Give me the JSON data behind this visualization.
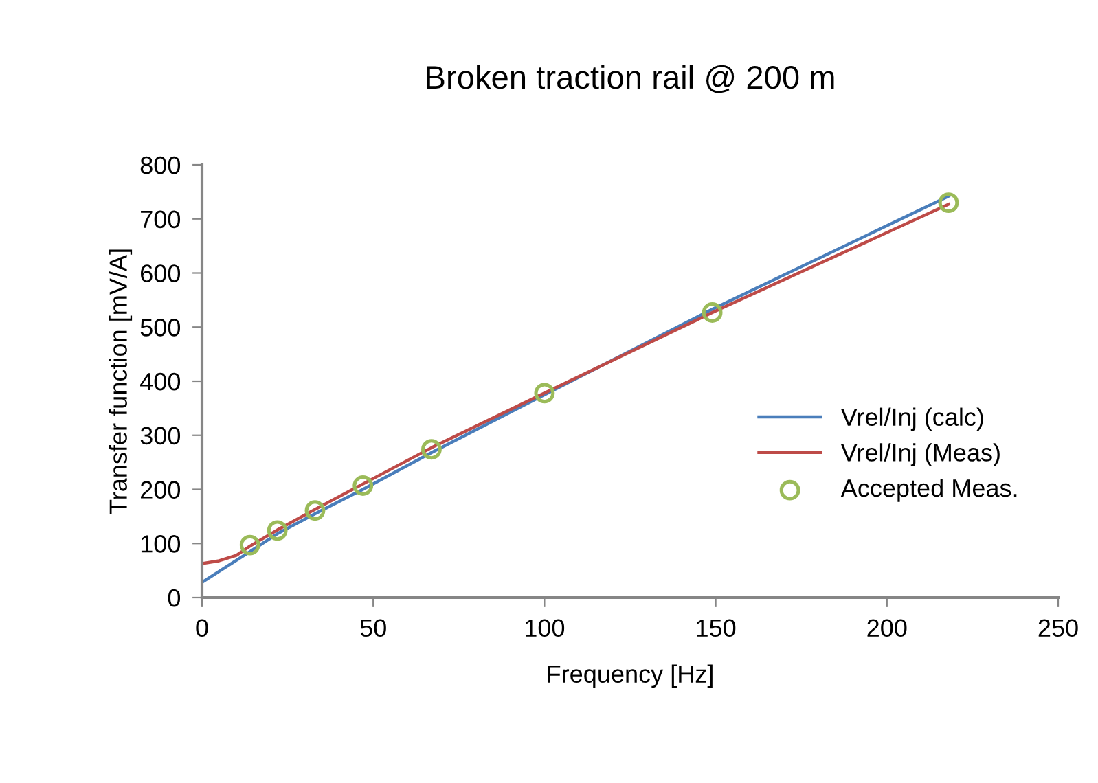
{
  "chart_data": {
    "type": "line",
    "title": "Broken traction rail @ 200 m",
    "xlabel": "Frequency [Hz]",
    "ylabel": "Transfer function [mV/A]",
    "xlim": [
      0,
      250
    ],
    "xticks": [
      0,
      50,
      100,
      150,
      200,
      250
    ],
    "ylim": [
      0,
      800
    ],
    "yticks": [
      0,
      100,
      200,
      300,
      400,
      500,
      600,
      700,
      800
    ],
    "grid": false,
    "legend": "right",
    "marker": "none",
    "line_style": "solid",
    "series": [
      {
        "name": "Vrel/Inj (calc)",
        "color": "#4a7ebb",
        "x": [
          0,
          14,
          22,
          33,
          47,
          67,
          100,
          149,
          218
        ],
        "values": [
          28,
          85,
          118,
          155,
          200,
          268,
          375,
          533,
          742
        ]
      },
      {
        "name": "Vrel/Inj (Meas)",
        "color": "#be4b48",
        "x": [
          0,
          5,
          10,
          14,
          22,
          33,
          47,
          67,
          100,
          149,
          218
        ],
        "values": [
          63,
          68,
          78,
          95,
          125,
          163,
          210,
          277,
          378,
          527,
          727
        ]
      },
      {
        "name": "Accepted Meas.",
        "color": "#9bbb59",
        "type": "scatter",
        "marker": "circle",
        "x": [
          14,
          22,
          33,
          47,
          67,
          100,
          149,
          218
        ],
        "values": [
          97,
          124,
          161,
          207,
          274,
          378,
          527,
          730
        ]
      }
    ]
  }
}
